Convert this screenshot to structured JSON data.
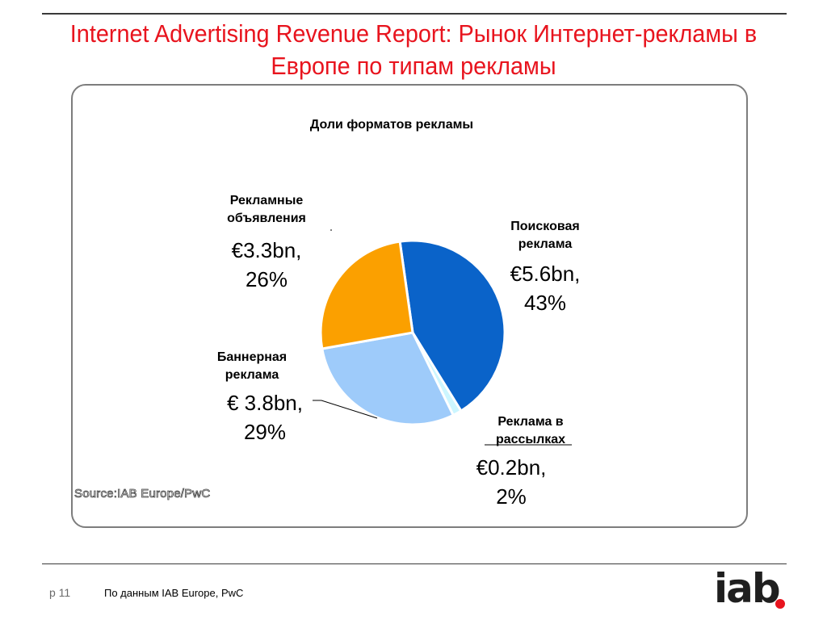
{
  "slide": {
    "title": "Internet Advertising Revenue Report: Рынок Интернет-рекламы в Европе по типам рекламы",
    "ghost_source": "Source:IAB Europe/PwC",
    "page_number": "p 11",
    "source": "По данным  IAB Europe, PwC",
    "logo_text": "iab",
    "brand_color": "#e8141e"
  },
  "chart_data": {
    "type": "pie",
    "title": "Доли форматов рекламы",
    "unit": "€bn",
    "slices": [
      {
        "name": "Поисковая реклама",
        "label_lines": [
          "Поисковая",
          "реклама"
        ],
        "value": 5.6,
        "percent": 43,
        "value_label": [
          "€5.6bn,",
          "43%"
        ],
        "color": "#0a63c9"
      },
      {
        "name": "Реклама в рассылках",
        "label_lines": [
          "Реклама в",
          "рассылках"
        ],
        "value": 0.2,
        "percent": 2,
        "value_label": [
          "€0.2bn,",
          "2%"
        ],
        "color": "#ccf6ff"
      },
      {
        "name": "Баннерная реклама",
        "label_lines": [
          "Баннерная",
          "реклама"
        ],
        "value": 3.8,
        "percent": 29,
        "value_label": [
          "€ 3.8bn,",
          "29%"
        ],
        "color": "#9ecbfa"
      },
      {
        "name": "Рекламные объявления",
        "label_lines": [
          "Рекламные",
          "объявления"
        ],
        "value": 3.3,
        "percent": 26,
        "value_label": [
          "€3.3bn,",
          "26%"
        ],
        "color": "#fba000"
      }
    ],
    "start_angle_deg": -8,
    "direction": "clockwise",
    "legend": "none"
  }
}
